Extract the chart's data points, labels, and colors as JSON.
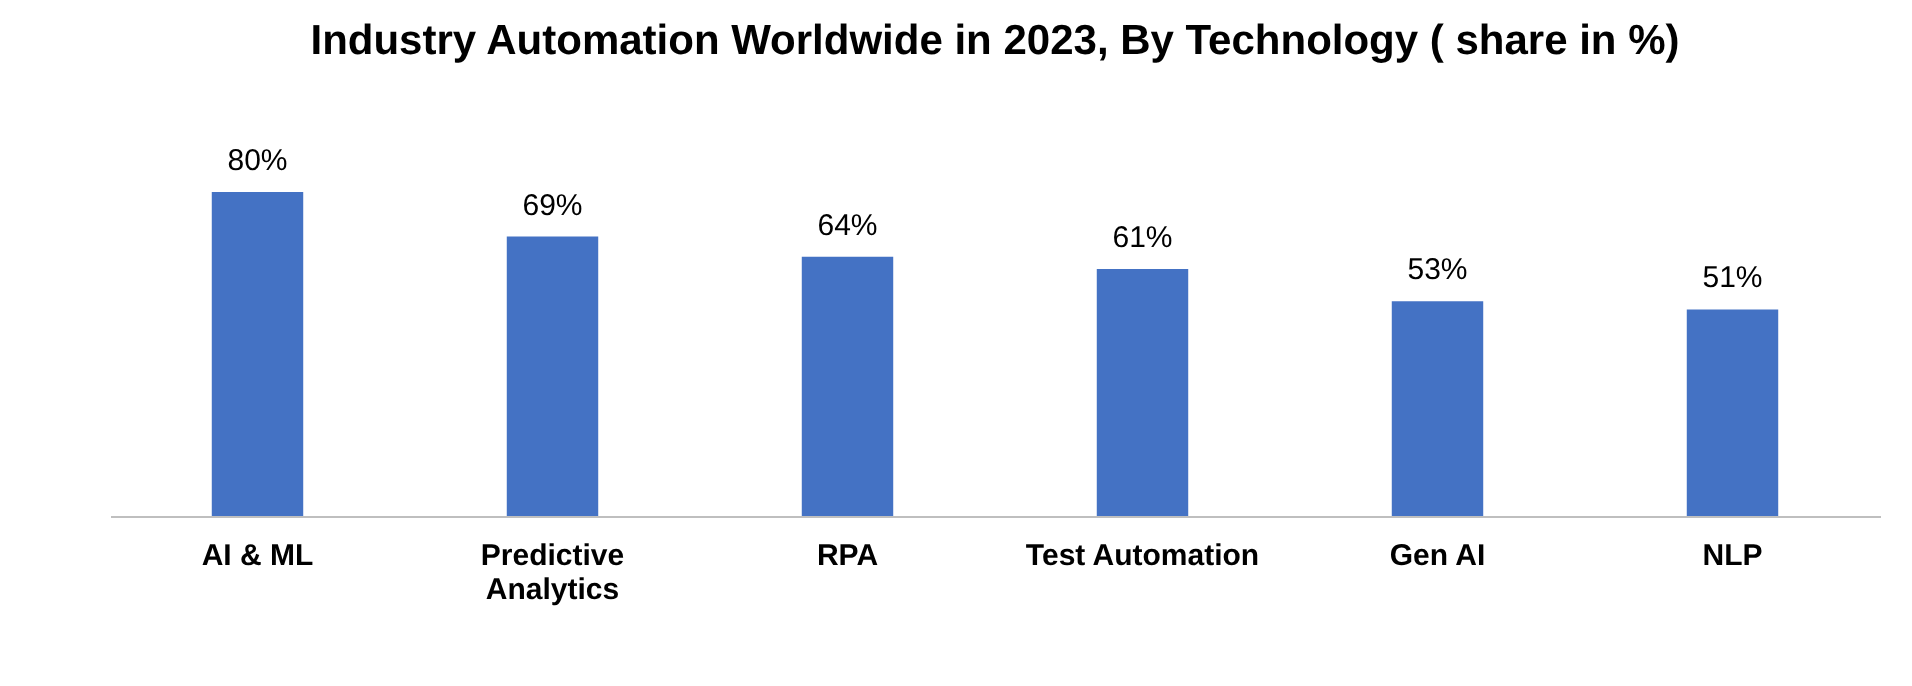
{
  "chart_data": {
    "type": "bar",
    "title": "Industry Automation Worldwide in 2023, By Technology ( share in %)",
    "categories": [
      "AI & ML",
      "Predictive Analytics",
      "RPA",
      "Test Automation",
      "Gen AI",
      "NLP"
    ],
    "values": [
      80,
      69,
      64,
      61,
      53,
      51
    ],
    "value_labels": [
      "80%",
      "69%",
      "64%",
      "61%",
      "53%",
      "51%"
    ],
    "color": "#4472c4",
    "tick_labels": "x"
  }
}
